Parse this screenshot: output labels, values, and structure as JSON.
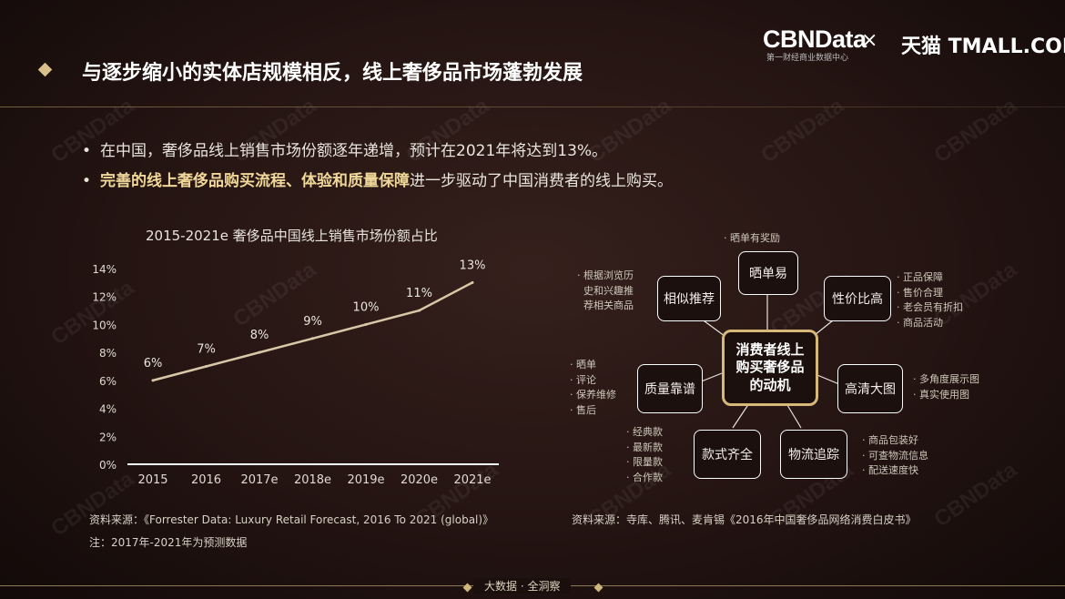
{
  "header": {
    "brand": "CBNData",
    "brand_sub": "第一财经商业数据中心",
    "separator": "×",
    "partner": "天猫 TMALL.COM"
  },
  "watermark_text": "CBNData",
  "title": "与逐步缩小的实体店规模相反，线上奢侈品市场蓬勃发展",
  "bullets": [
    {
      "text": "在中国，奢侈品线上销售市场份额逐年递增，预计在2021年将达到13%。"
    },
    {
      "highlight": "完善的线上奢侈品购买流程、体验和质量保障",
      "text": "进一步驱动了中国消费者的线上购买。"
    }
  ],
  "chart_data": {
    "type": "line",
    "title": "2015-2021e 奢侈品中国线上销售市场份额占比",
    "categories": [
      "2015",
      "2016",
      "2017e",
      "2018e",
      "2019e",
      "2020e",
      "2021e"
    ],
    "values": [
      6,
      7,
      8,
      9,
      10,
      11,
      13
    ],
    "data_labels": [
      "6%",
      "7%",
      "8%",
      "9%",
      "10%",
      "11%",
      "13%"
    ],
    "y_ticks": [
      "0%",
      "2%",
      "4%",
      "6%",
      "8%",
      "10%",
      "12%",
      "14%"
    ],
    "ylim": [
      0,
      14
    ],
    "line_color": "#d8c8a8",
    "grid": false
  },
  "chart_source": "资料来源：《Forrester Data: Luxury Retail Forecast, 2016 To 2021 (global)》",
  "chart_note": "注：2017年-2021年为预测数据",
  "diagram": {
    "center": "消费者线上购买奢侈品的动机",
    "nodes": {
      "shaidan": "晒单易",
      "similar": "相似推荐",
      "value": "性价比高",
      "quality": "质量靠谱",
      "hd": "高清大图",
      "style": "款式齐全",
      "logistics": "物流追踪"
    },
    "notes": {
      "shaidan": [
        "晒单有奖励"
      ],
      "similar": [
        "根据浏览历史和兴趣推荐相关商品"
      ],
      "value": [
        "正品保障",
        "售价合理",
        "老会员有折扣",
        "商品活动"
      ],
      "quality": [
        "晒单",
        "评论",
        "保养维修",
        "售后"
      ],
      "hd": [
        "多角度展示图",
        "真实使用图"
      ],
      "style": [
        "经典款",
        "最新款",
        "限量款",
        "合作款"
      ],
      "logistics": [
        "商品包装好",
        "可查物流信息",
        "配送速度快"
      ]
    },
    "source": "资料来源：寺库、腾讯、麦肯锡《2016年中国奢侈品网络消费白皮书》"
  },
  "footer": "大数据 · 全洞察"
}
